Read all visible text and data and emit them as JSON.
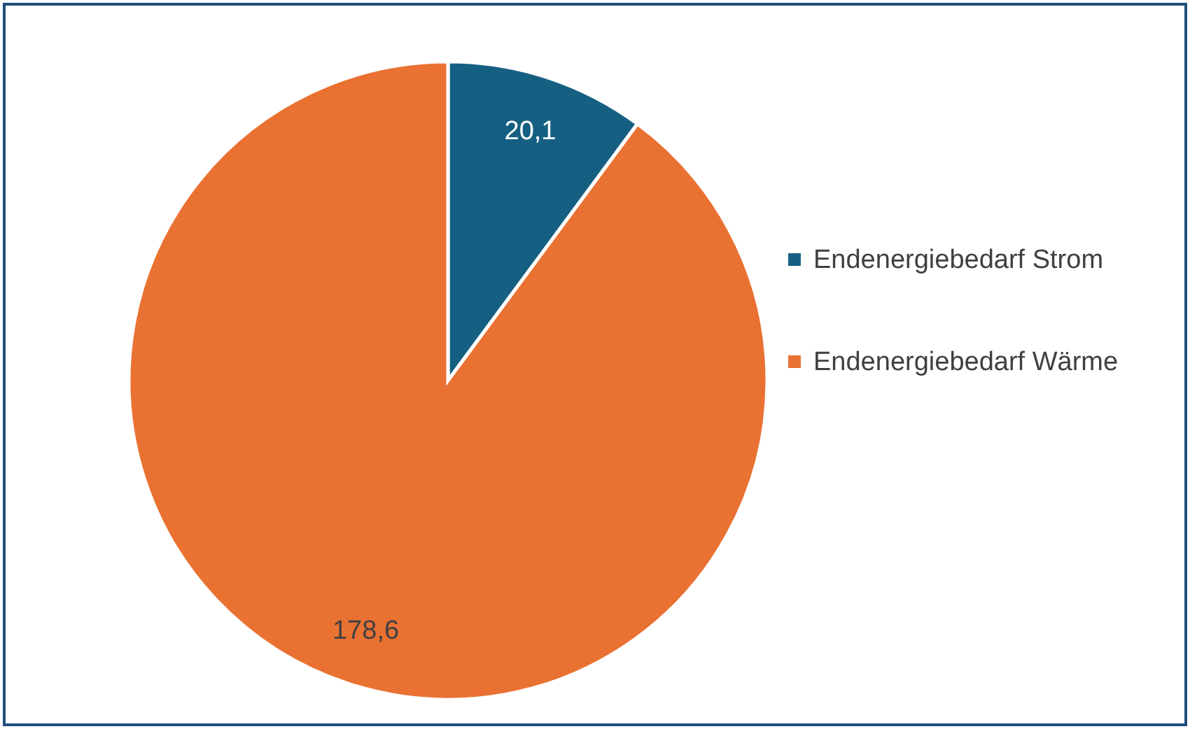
{
  "chart_data": {
    "type": "pie",
    "categories": [
      "Endenergiebedarf Strom",
      "Endenergiebedarf Wärme"
    ],
    "values": [
      20.1,
      178.6
    ],
    "colors": [
      "#156082",
      "#e97132"
    ],
    "value_labels": [
      "20,1",
      "178,6"
    ],
    "legend": "right"
  }
}
